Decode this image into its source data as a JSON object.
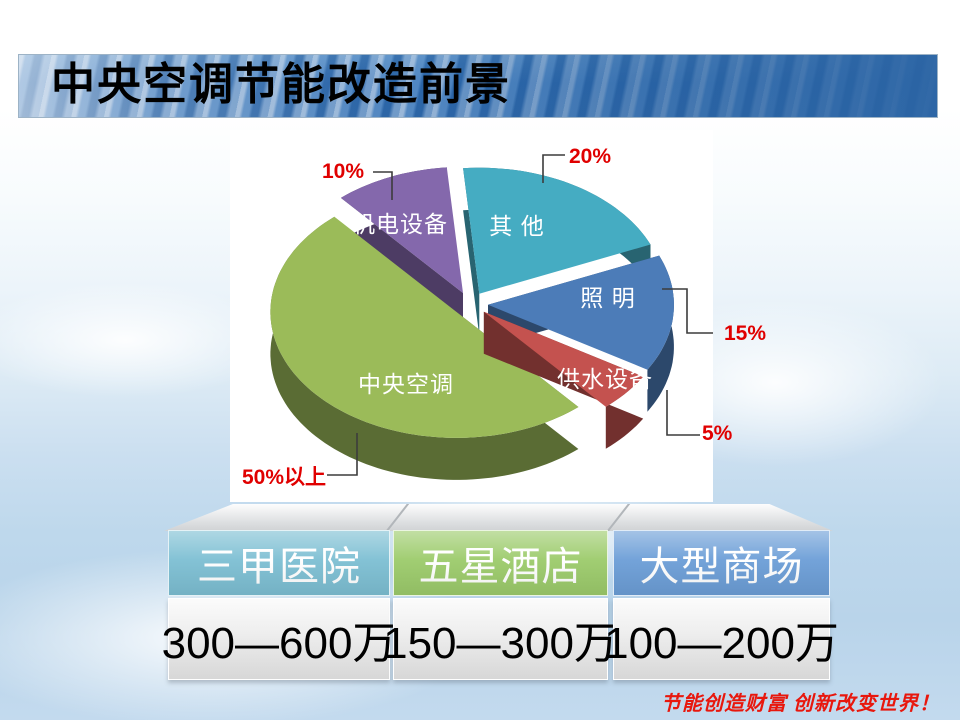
{
  "slide": {
    "title": "中央空调节能改造前景",
    "footer": "节能创造财富 创新改变世界！",
    "footer_color": "#e8170d",
    "background_accent": "#bcd6ec",
    "title_bar_color": "#2f6db3"
  },
  "chart_data": {
    "type": "pie",
    "style": "3d-exploded-pie",
    "title": "",
    "start_angle_deg": 95,
    "clockwise": true,
    "legend_position": "inside-slices",
    "label_color": "#ffffff",
    "callout_color": "#e00000",
    "segments": [
      {
        "label": "其 他",
        "value": 20,
        "value_label": "20%",
        "color": "#45acc2"
      },
      {
        "label": "照 明",
        "value": 15,
        "value_label": "15%",
        "color": "#4c7cb8"
      },
      {
        "label": "供水设备",
        "value": 5,
        "value_label": "5%",
        "color": "#c4524f"
      },
      {
        "label": "中央空调",
        "value": 50,
        "value_label": "50%以上",
        "color": "#9bbb59"
      },
      {
        "label": "机电设备",
        "value": 10,
        "value_label": "10%",
        "color": "#8468ac"
      }
    ]
  },
  "table": {
    "columns": [
      {
        "header": "三甲医院",
        "value": "300—600万",
        "header_color": "#7dbfd3"
      },
      {
        "header": "五星酒店",
        "value": "150—300万",
        "header_color": "#9ccb6b"
      },
      {
        "header": "大型商场",
        "value": "100—200万",
        "header_color": "#6c9ed7"
      }
    ]
  }
}
